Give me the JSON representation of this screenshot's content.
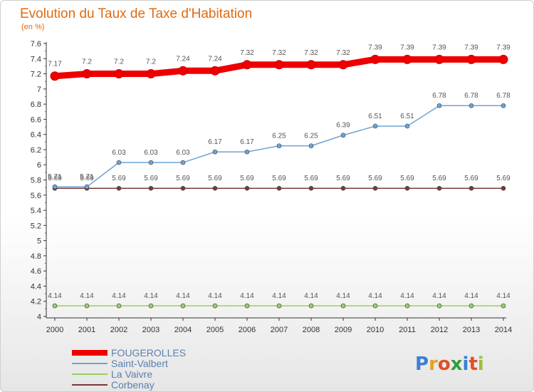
{
  "chart_data": {
    "type": "line",
    "title": "Evolution du Taux de Taxe d'Habitation",
    "subtitle": "(en %)",
    "ylim": [
      4,
      7.6
    ],
    "yticks": [
      "4",
      "4.2",
      "4.4",
      "4.6",
      "4.8",
      "5",
      "5.2",
      "5.4",
      "5.6",
      "5.8",
      "6",
      "6.2",
      "6.4",
      "6.6",
      "6.8",
      "7",
      "7.2",
      "7.4",
      "7.6"
    ],
    "categories": [
      "2000",
      "2001",
      "2002",
      "2003",
      "2004",
      "2005",
      "2006",
      "2007",
      "2008",
      "2009",
      "2010",
      "2011",
      "2012",
      "2013",
      "2014"
    ],
    "grid": false,
    "legend_position": "bottom-left",
    "series": [
      {
        "name": "FOUGEROLLES",
        "color": "#ee0000",
        "values": [
          7.17,
          7.2,
          7.2,
          7.2,
          7.24,
          7.24,
          7.32,
          7.32,
          7.32,
          7.32,
          7.39,
          7.39,
          7.39,
          7.39,
          7.39
        ]
      },
      {
        "name": "Saint-Valbert",
        "color": "#6fa3d3",
        "values": [
          5.71,
          5.71,
          6.03,
          6.03,
          6.03,
          6.17,
          6.17,
          6.25,
          6.25,
          6.39,
          6.51,
          6.51,
          6.78,
          6.78,
          6.78
        ]
      },
      {
        "name": "La Vaivre",
        "color": "#99d066",
        "values": [
          4.14,
          4.14,
          4.14,
          4.14,
          4.14,
          4.14,
          4.14,
          4.14,
          4.14,
          4.14,
          4.14,
          4.14,
          4.14,
          4.14,
          4.14
        ]
      },
      {
        "name": "Corbenay",
        "color": "#7a3a3a",
        "values": [
          5.69,
          5.69,
          5.69,
          5.69,
          5.69,
          5.69,
          5.69,
          5.69,
          5.69,
          5.69,
          5.69,
          5.69,
          5.69,
          5.69,
          5.69
        ]
      }
    ]
  },
  "logo": {
    "text": "Proxiti",
    "letter_colors": [
      "#3b7fd6",
      "#e8a020",
      "#e05020",
      "#2e9e3a",
      "#3b7fd6",
      "#e05020",
      "#9ac23c"
    ]
  }
}
